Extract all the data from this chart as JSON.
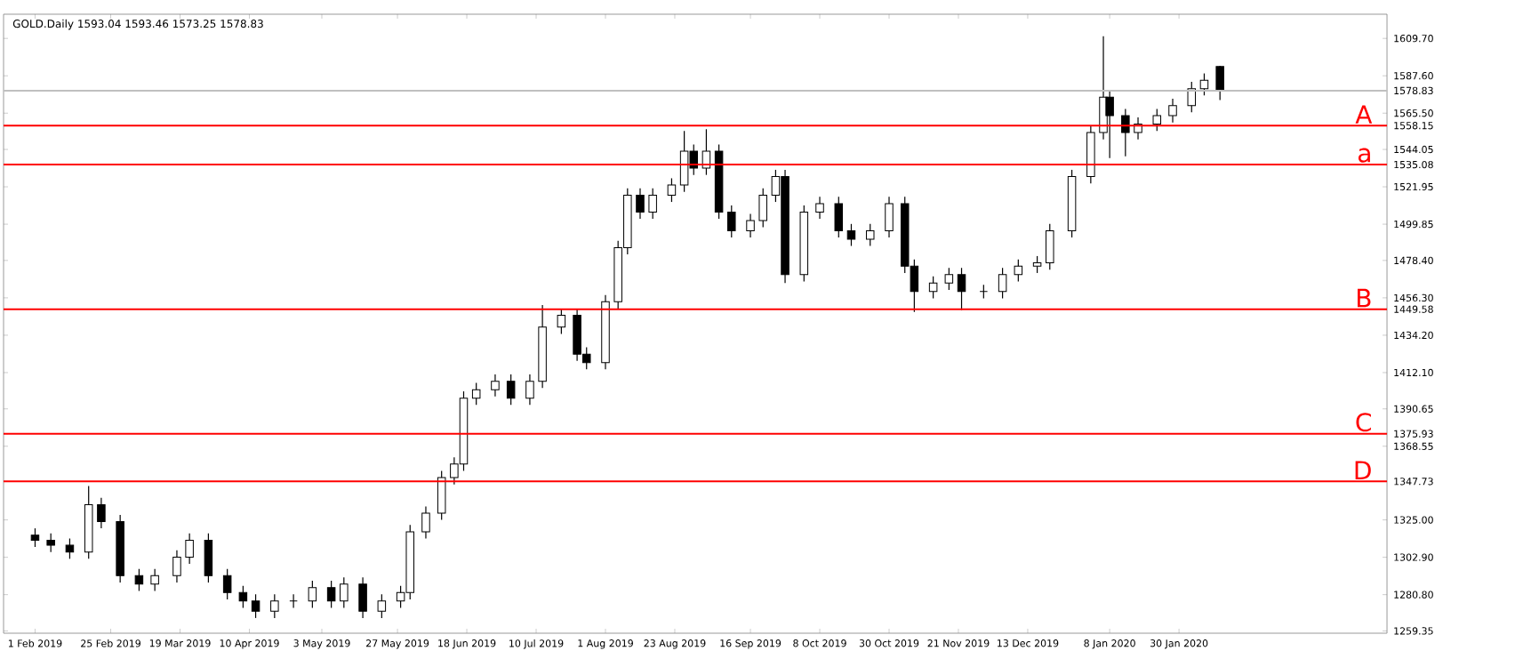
{
  "chart_data": {
    "type": "candlestick",
    "title": "GOLD.Daily  1593.04 1593.46 1573.25 1578.83",
    "x": [
      "2019-02-01",
      "2019-02-06",
      "2019-02-12",
      "2019-02-18",
      "2019-02-22",
      "2019-02-28",
      "2019-03-06",
      "2019-03-11",
      "2019-03-18",
      "2019-03-22",
      "2019-03-28",
      "2019-04-03",
      "2019-04-08",
      "2019-04-12",
      "2019-04-18",
      "2019-04-24",
      "2019-04-30",
      "2019-05-06",
      "2019-05-10",
      "2019-05-16",
      "2019-05-22",
      "2019-05-28",
      "2019-05-31",
      "2019-06-05",
      "2019-06-10",
      "2019-06-14",
      "2019-06-17",
      "2019-06-21",
      "2019-06-27",
      "2019-07-02",
      "2019-07-08",
      "2019-07-12",
      "2019-07-18",
      "2019-07-23",
      "2019-07-26",
      "2019-08-01",
      "2019-08-05",
      "2019-08-08",
      "2019-08-12",
      "2019-08-16",
      "2019-08-22",
      "2019-08-26",
      "2019-08-29",
      "2019-09-02",
      "2019-09-06",
      "2019-09-10",
      "2019-09-16",
      "2019-09-20",
      "2019-09-24",
      "2019-09-27",
      "2019-10-03",
      "2019-10-08",
      "2019-10-14",
      "2019-10-18",
      "2019-10-24",
      "2019-10-30",
      "2019-11-04",
      "2019-11-07",
      "2019-11-13",
      "2019-11-18",
      "2019-11-22",
      "2019-11-29",
      "2019-12-05",
      "2019-12-10",
      "2019-12-16",
      "2019-12-20",
      "2019-12-27",
      "2020-01-02",
      "2020-01-06",
      "2020-01-08",
      "2020-01-13",
      "2020-01-17",
      "2020-01-23",
      "2020-01-28",
      "2020-02-03",
      "2020-02-07",
      "2020-02-12"
    ],
    "ohlc": [
      [
        1316,
        1320,
        1309,
        1313
      ],
      [
        1313,
        1317,
        1306,
        1310
      ],
      [
        1310,
        1314,
        1302,
        1306
      ],
      [
        1306,
        1345,
        1302,
        1334
      ],
      [
        1334,
        1338,
        1320,
        1324
      ],
      [
        1324,
        1328,
        1288,
        1292
      ],
      [
        1292,
        1296,
        1283,
        1287
      ],
      [
        1287,
        1296,
        1283,
        1292
      ],
      [
        1292,
        1307,
        1288,
        1303
      ],
      [
        1303,
        1317,
        1299,
        1313
      ],
      [
        1313,
        1317,
        1288,
        1292
      ],
      [
        1292,
        1296,
        1278,
        1282
      ],
      [
        1282,
        1286,
        1273,
        1277
      ],
      [
        1277,
        1281,
        1267,
        1271
      ],
      [
        1271,
        1281,
        1267,
        1277
      ],
      [
        1277,
        1281,
        1273,
        1277
      ],
      [
        1277,
        1289,
        1273,
        1285
      ],
      [
        1285,
        1289,
        1273,
        1277
      ],
      [
        1277,
        1291,
        1273,
        1287
      ],
      [
        1287,
        1291,
        1267,
        1271
      ],
      [
        1271,
        1281,
        1267,
        1277
      ],
      [
        1277,
        1286,
        1273,
        1282
      ],
      [
        1282,
        1322,
        1278,
        1318
      ],
      [
        1318,
        1333,
        1314,
        1329
      ],
      [
        1329,
        1354,
        1325,
        1350
      ],
      [
        1350,
        1362,
        1346,
        1358
      ],
      [
        1358,
        1401,
        1354,
        1397
      ],
      [
        1397,
        1406,
        1393,
        1402
      ],
      [
        1402,
        1411,
        1398,
        1407
      ],
      [
        1407,
        1411,
        1393,
        1397
      ],
      [
        1397,
        1411,
        1393,
        1407
      ],
      [
        1407,
        1452,
        1403,
        1439
      ],
      [
        1439,
        1450,
        1435,
        1446
      ],
      [
        1446,
        1450,
        1419,
        1423
      ],
      [
        1423,
        1427,
        1414,
        1418
      ],
      [
        1418,
        1458,
        1414,
        1454
      ],
      [
        1454,
        1490,
        1450,
        1486
      ],
      [
        1486,
        1521,
        1482,
        1517
      ],
      [
        1517,
        1521,
        1503,
        1507
      ],
      [
        1507,
        1521,
        1503,
        1517
      ],
      [
        1517,
        1527,
        1513,
        1523
      ],
      [
        1523,
        1555,
        1519,
        1543
      ],
      [
        1543,
        1547,
        1529,
        1533
      ],
      [
        1533,
        1556,
        1529,
        1543
      ],
      [
        1543,
        1547,
        1503,
        1507
      ],
      [
        1507,
        1511,
        1492,
        1496
      ],
      [
        1496,
        1506,
        1492,
        1502
      ],
      [
        1502,
        1521,
        1498,
        1517
      ],
      [
        1517,
        1532,
        1513,
        1528
      ],
      [
        1528,
        1532,
        1465,
        1470
      ],
      [
        1470,
        1511,
        1466,
        1507
      ],
      [
        1507,
        1516,
        1503,
        1512
      ],
      [
        1512,
        1516,
        1492,
        1496
      ],
      [
        1496,
        1500,
        1487,
        1491
      ],
      [
        1491,
        1500,
        1487,
        1496
      ],
      [
        1496,
        1516,
        1492,
        1512
      ],
      [
        1512,
        1516,
        1471,
        1475
      ],
      [
        1475,
        1479,
        1448,
        1460
      ],
      [
        1460,
        1469,
        1456,
        1465
      ],
      [
        1465,
        1474,
        1461,
        1470
      ],
      [
        1470,
        1474,
        1449,
        1460
      ],
      [
        1460,
        1464,
        1456,
        1460
      ],
      [
        1460,
        1474,
        1456,
        1470
      ],
      [
        1470,
        1479,
        1466,
        1475
      ],
      [
        1475,
        1481,
        1471,
        1477
      ],
      [
        1477,
        1500,
        1473,
        1496
      ],
      [
        1496,
        1532,
        1492,
        1528
      ],
      [
        1528,
        1558,
        1524,
        1554
      ],
      [
        1554,
        1611,
        1550,
        1575
      ],
      [
        1575,
        1579,
        1539,
        1564
      ],
      [
        1564,
        1568,
        1540,
        1554
      ],
      [
        1554,
        1563,
        1550,
        1559
      ],
      [
        1559,
        1568,
        1555,
        1564
      ],
      [
        1564,
        1574,
        1560,
        1570
      ],
      [
        1570,
        1584,
        1566,
        1580
      ],
      [
        1580,
        1589,
        1576,
        1585
      ],
      [
        1593.04,
        1593.46,
        1573.25,
        1578.83
      ]
    ],
    "color": "#000000",
    "xlim": [
      "2019-01-22",
      "2020-04-05"
    ],
    "xticks": [
      {
        "value": "2019-02-01",
        "label": "1 Feb 2019"
      },
      {
        "value": "2019-02-25",
        "label": "25 Feb 2019"
      },
      {
        "value": "2019-03-19",
        "label": "19 Mar 2019"
      },
      {
        "value": "2019-04-10",
        "label": "10 Apr 2019"
      },
      {
        "value": "2019-05-03",
        "label": "3 May 2019"
      },
      {
        "value": "2019-05-27",
        "label": "27 May 2019"
      },
      {
        "value": "2019-06-18",
        "label": "18 Jun 2019"
      },
      {
        "value": "2019-07-10",
        "label": "10 Jul 2019"
      },
      {
        "value": "2019-08-01",
        "label": "1 Aug 2019"
      },
      {
        "value": "2019-08-23",
        "label": "23 Aug 2019"
      },
      {
        "value": "2019-09-16",
        "label": "16 Sep 2019"
      },
      {
        "value": "2019-10-08",
        "label": "8 Oct 2019"
      },
      {
        "value": "2019-10-30",
        "label": "30 Oct 2019"
      },
      {
        "value": "2019-11-21",
        "label": "21 Nov 2019"
      },
      {
        "value": "2019-12-13",
        "label": "13 Dec 2019"
      },
      {
        "value": "2020-01-08",
        "label": "8 Jan 2020"
      },
      {
        "value": "2020-01-30",
        "label": "30 Jan 2020"
      }
    ],
    "ylim": [
      1258,
      1624
    ],
    "yticks": [
      {
        "value": 1609.7,
        "label": "1609.70"
      },
      {
        "value": 1587.6,
        "label": "1587.60"
      },
      {
        "value": 1578.83,
        "label": "1578.83"
      },
      {
        "value": 1565.5,
        "label": "1565.50"
      },
      {
        "value": 1558.15,
        "label": "1558.15"
      },
      {
        "value": 1544.05,
        "label": "1544.05"
      },
      {
        "value": 1535.08,
        "label": "1535.08"
      },
      {
        "value": 1521.95,
        "label": "1521.95"
      },
      {
        "value": 1499.85,
        "label": "1499.85"
      },
      {
        "value": 1478.4,
        "label": "1478.40"
      },
      {
        "value": 1456.3,
        "label": "1456.30"
      },
      {
        "value": 1449.58,
        "label": "1449.58"
      },
      {
        "value": 1434.2,
        "label": "1434.20"
      },
      {
        "value": 1412.1,
        "label": "1412.10"
      },
      {
        "value": 1390.65,
        "label": "1390.65"
      },
      {
        "value": 1375.93,
        "label": "1375.93"
      },
      {
        "value": 1368.55,
        "label": "1368.55"
      },
      {
        "value": 1347.73,
        "label": "1347.73"
      },
      {
        "value": 1325.0,
        "label": "1325.00"
      },
      {
        "value": 1302.9,
        "label": "1302.90"
      },
      {
        "value": 1280.8,
        "label": "1280.80"
      },
      {
        "value": 1259.35,
        "label": "1259.35"
      }
    ],
    "ref_lines": [
      {
        "axis": "y",
        "value": 1578.83,
        "color": "#c0c0c0"
      },
      {
        "axis": "y",
        "value": 1558.15,
        "label": "A",
        "color": "#ff0000"
      },
      {
        "axis": "y",
        "value": 1535.08,
        "label": "a",
        "color": "#ff0000"
      },
      {
        "axis": "y",
        "value": 1449.58,
        "label": "B",
        "color": "#ff0000"
      },
      {
        "axis": "y",
        "value": 1375.93,
        "label": "C",
        "color": "#ff0000"
      },
      {
        "axis": "y",
        "value": 1347.73,
        "label": "D",
        "color": "#ff0000"
      }
    ]
  }
}
